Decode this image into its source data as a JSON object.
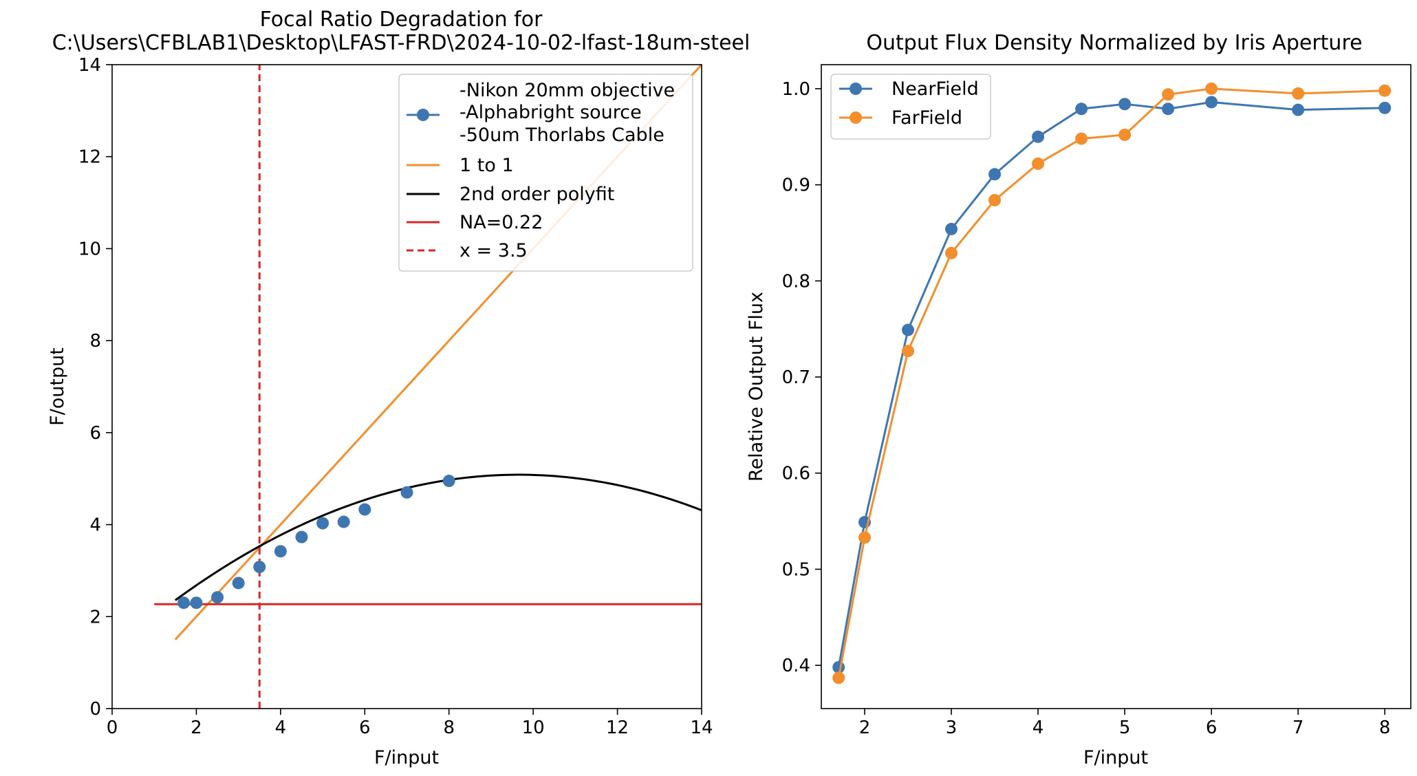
{
  "chart_data": [
    {
      "type": "line",
      "title_line1": "Focal Ratio Degradation for",
      "title_line2": "C:\\Users\\CFBLAB1\\Desktop\\LFAST-FRD\\2024-10-02-lfast-18um-steel",
      "xlabel": "F/input",
      "ylabel": "F/output",
      "xlim": [
        0,
        14
      ],
      "ylim": [
        0,
        14
      ],
      "xticks": [
        0,
        2,
        4,
        6,
        8,
        10,
        12,
        14
      ],
      "yticks": [
        0,
        2,
        4,
        6,
        8,
        10,
        12,
        14
      ],
      "legend_position": "upper right",
      "series": [
        {
          "kind": "points",
          "legend_lines": [
            "-Nikon 20mm objective",
            "-Alphabright source",
            "-50um Thorlabs Cable"
          ],
          "color": "#3d76b0",
          "x": [
            1.7,
            2.0,
            2.5,
            3.0,
            3.5,
            4.0,
            4.5,
            5.0,
            5.5,
            6.0,
            7.0,
            8.0
          ],
          "y": [
            2.3,
            2.3,
            2.42,
            2.73,
            3.08,
            3.42,
            3.73,
            4.03,
            4.06,
            4.33,
            4.7,
            4.95
          ]
        },
        {
          "kind": "line",
          "name": "1 to 1",
          "color": "#f28e2b",
          "x": [
            1.5,
            14
          ],
          "y": [
            1.5,
            14
          ]
        },
        {
          "kind": "curve",
          "name": "2nd order polyfit",
          "color": "#000000",
          "x_range": [
            1.5,
            14
          ],
          "coefficients": [
            -0.041,
            0.792,
            1.26
          ]
        },
        {
          "kind": "hline",
          "name": "NA=0.22",
          "color": "#d62728",
          "y": 2.27,
          "x_range": [
            1.0,
            14
          ]
        },
        {
          "kind": "vline",
          "name": "x = 3.5",
          "color": "#d62728",
          "dashed": true,
          "x": 3.5
        }
      ]
    },
    {
      "type": "line",
      "title": "Output Flux Density Normalized by Iris Aperture",
      "xlabel": "F/input",
      "ylabel": "Relative Output Flux",
      "xlim": [
        1.5,
        8.3
      ],
      "ylim": [
        0.355,
        1.025
      ],
      "xticks": [
        2,
        3,
        4,
        5,
        6,
        7,
        8
      ],
      "yticks": [
        0.4,
        0.5,
        0.6,
        0.7,
        0.8,
        0.9,
        1.0
      ],
      "ytick_labels": [
        "0.4",
        "0.5",
        "0.6",
        "0.7",
        "0.8",
        "0.9",
        "1.0"
      ],
      "legend_position": "upper left",
      "x": [
        1.7,
        2.0,
        2.5,
        3.0,
        3.5,
        4.0,
        4.5,
        5.0,
        5.5,
        6.0,
        7.0,
        8.0
      ],
      "series": [
        {
          "name": "NearField",
          "color": "#3d76b0",
          "values": [
            0.398,
            0.549,
            0.749,
            0.854,
            0.911,
            0.95,
            0.979,
            0.984,
            0.979,
            0.986,
            0.978,
            0.98
          ]
        },
        {
          "name": "FarField",
          "color": "#f28e2b",
          "values": [
            0.387,
            0.533,
            0.727,
            0.829,
            0.884,
            0.922,
            0.948,
            0.952,
            0.994,
            1.0,
            0.995,
            0.998
          ]
        }
      ]
    }
  ]
}
